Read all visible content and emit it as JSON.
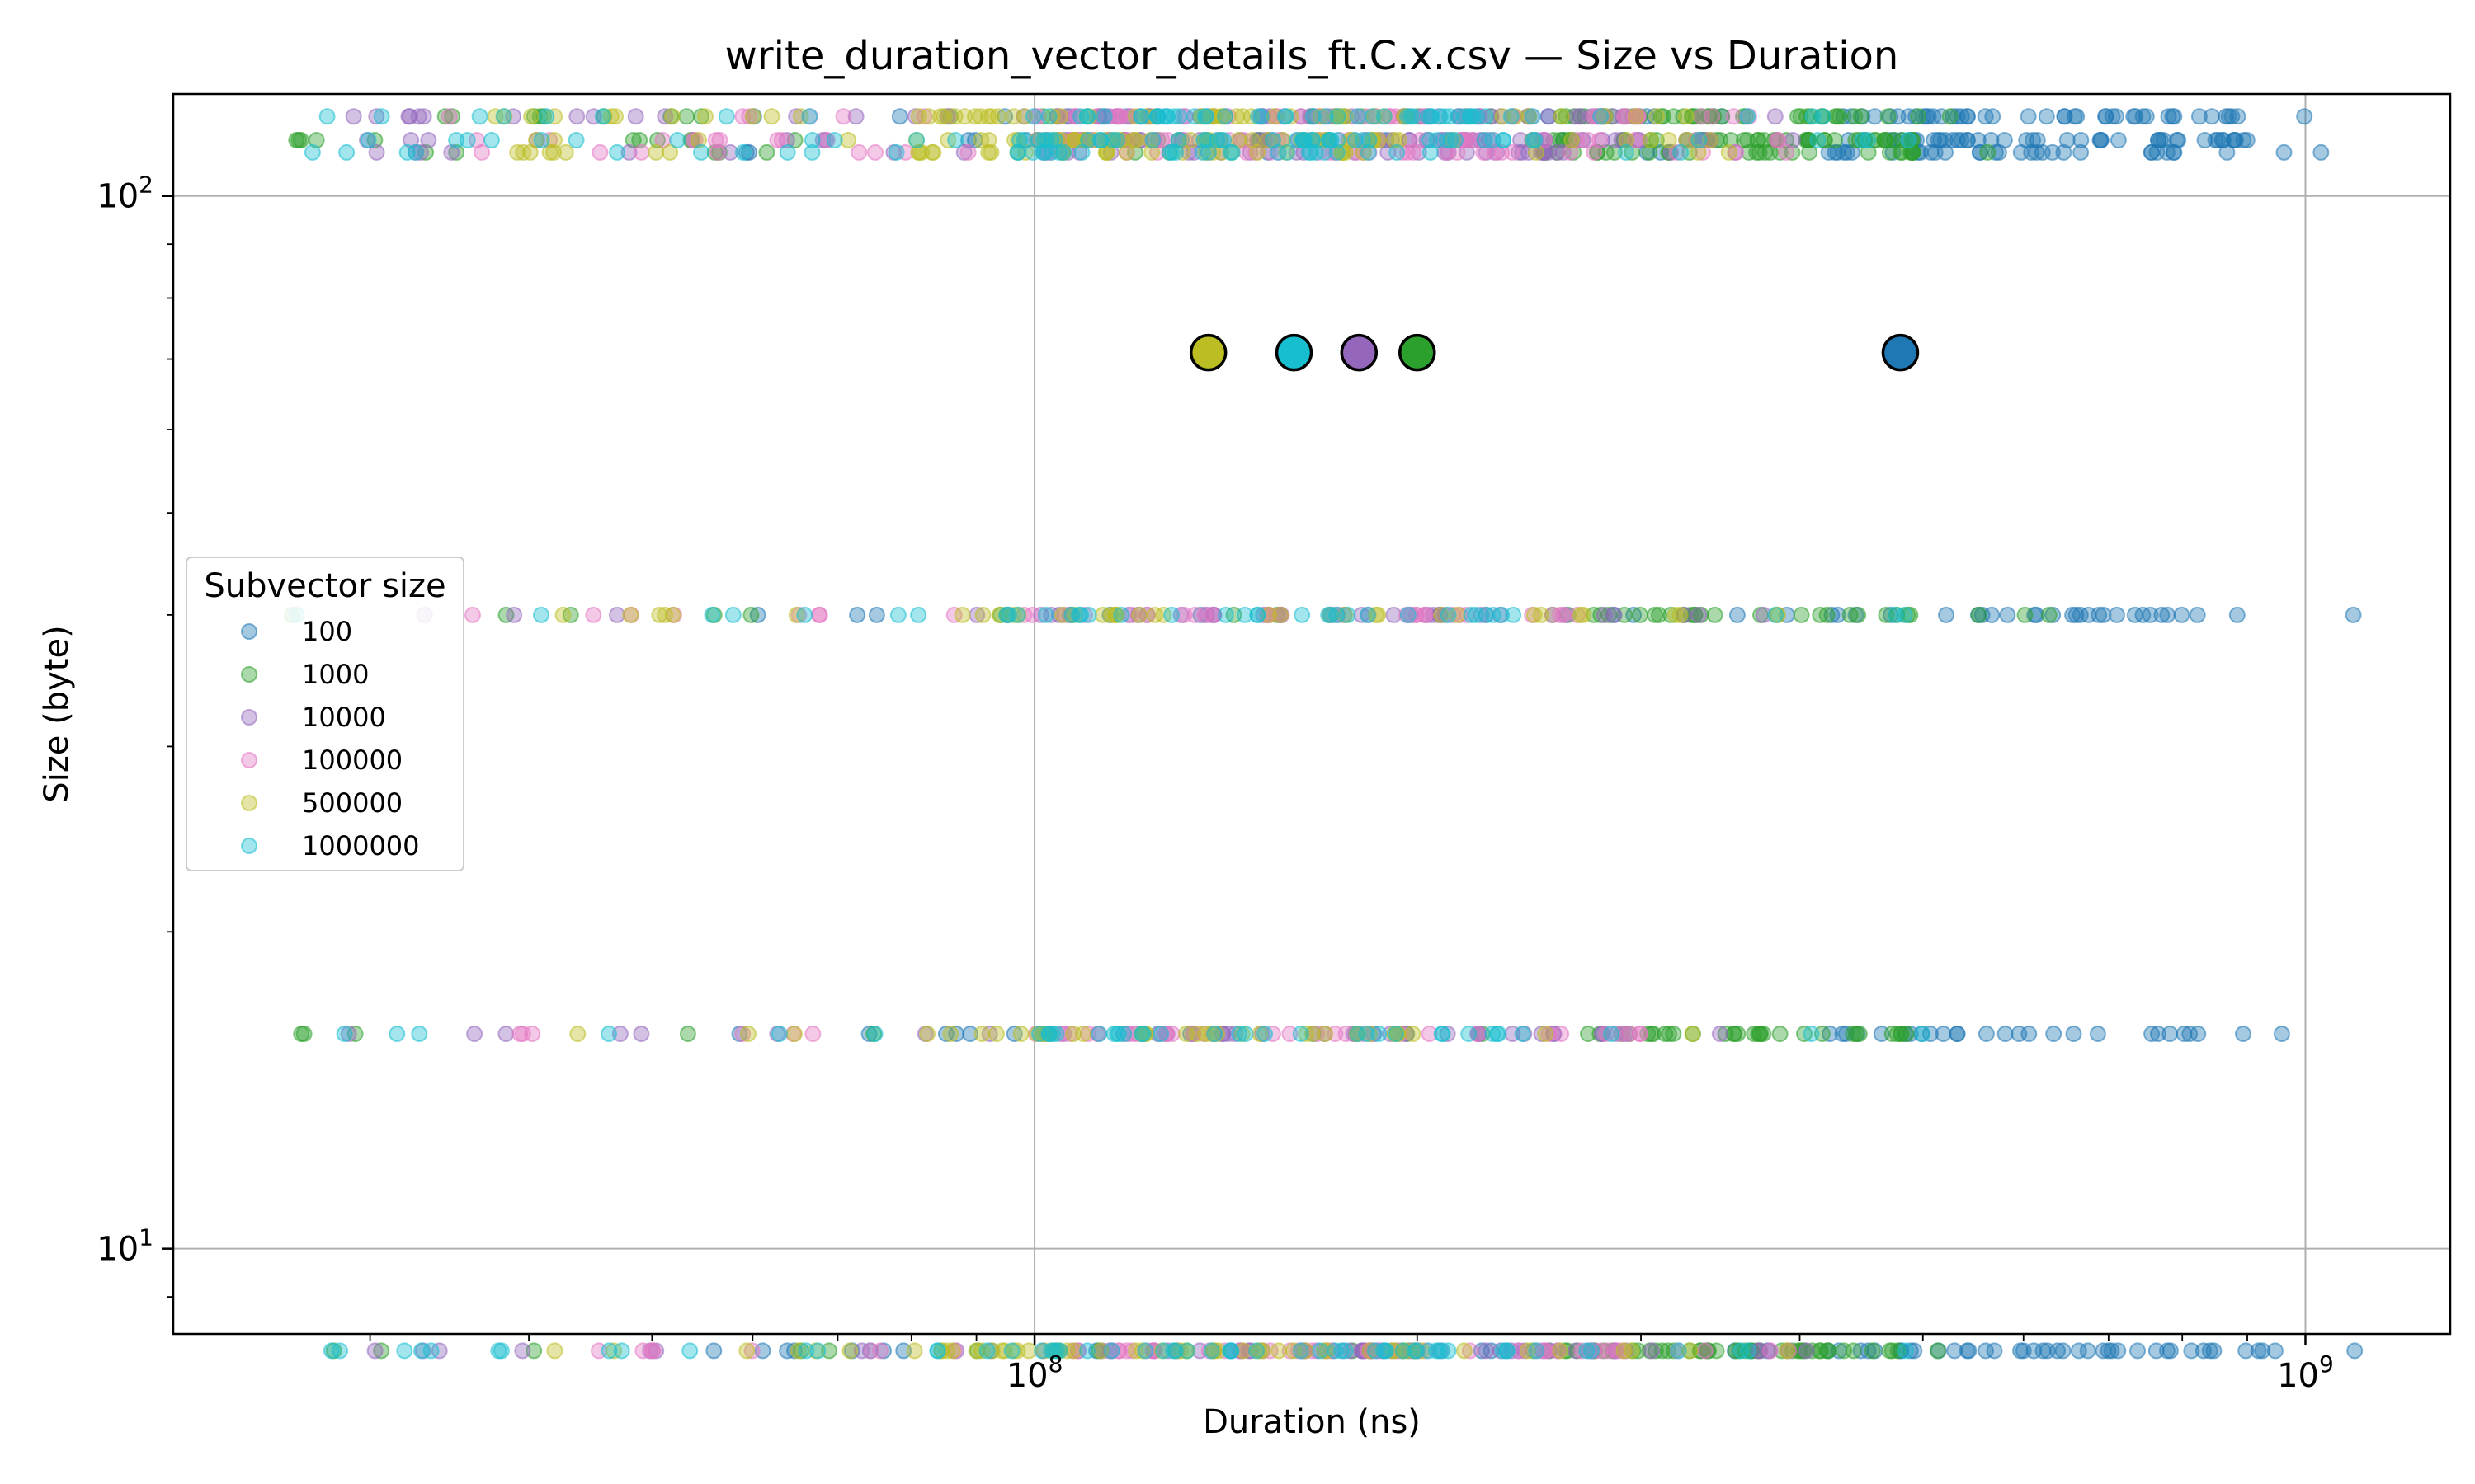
{
  "chart_data": {
    "type": "scatter",
    "title": "write_duration_vector_details_ft.C.x.csv — Size vs Duration",
    "xlabel": "Duration (ns)",
    "ylabel": "Size (byte)",
    "xscale": "log",
    "yscale": "log",
    "xlim": [
      21000000,
      1300000000
    ],
    "ylim": [
      8.3,
      125
    ],
    "xticks": [
      {
        "value": 100000000,
        "base": "10",
        "exp": "8"
      },
      {
        "value": 1000000000,
        "base": "10",
        "exp": "9"
      }
    ],
    "yticks": [
      {
        "value": 10,
        "base": "10",
        "exp": "1"
      },
      {
        "value": 100,
        "base": "10",
        "exp": "2"
      }
    ],
    "grid": true,
    "legend": {
      "title": "Subvector size",
      "placement": "center-left"
    },
    "size_levels": [
      8,
      16,
      40,
      110,
      113,
      119
    ],
    "series": [
      {
        "name": "100",
        "color": "#1f77b4",
        "x_range": [
          55000000,
          1100000000
        ],
        "dense_range": [
          420000000,
          900000000
        ],
        "mean": {
          "x": 480000000,
          "y": 71
        }
      },
      {
        "name": "1000",
        "color": "#2ca02c",
        "x_range": [
          26000000,
          650000000
        ],
        "dense_range": [
          250000000,
          500000000
        ],
        "mean": {
          "x": 200000000,
          "y": 71
        }
      },
      {
        "name": "10000",
        "color": "#9467bd",
        "x_range": [
          28000000,
          450000000
        ],
        "dense_range": [
          100000000,
          300000000
        ],
        "mean": {
          "x": 180000000,
          "y": 71
        }
      },
      {
        "name": "100000",
        "color": "#e377c2",
        "x_range": [
          34000000,
          400000000
        ],
        "dense_range": [
          100000000,
          300000000
        ],
        "mean": {
          "x": 180000000,
          "y": 71
        }
      },
      {
        "name": "500000",
        "color": "#bcbd22",
        "x_range": [
          37000000,
          400000000
        ],
        "dense_range": [
          80000000,
          200000000
        ],
        "mean": {
          "x": 137000000,
          "y": 71
        }
      },
      {
        "name": "1000000",
        "color": "#17becf",
        "x_range": [
          26000000,
          500000000
        ],
        "dense_range": [
          100000000,
          250000000
        ],
        "mean": {
          "x": 160000000,
          "y": 71
        }
      }
    ],
    "means_shown": [
      "500000",
      "1000000",
      "10000",
      "1000",
      "100"
    ]
  }
}
